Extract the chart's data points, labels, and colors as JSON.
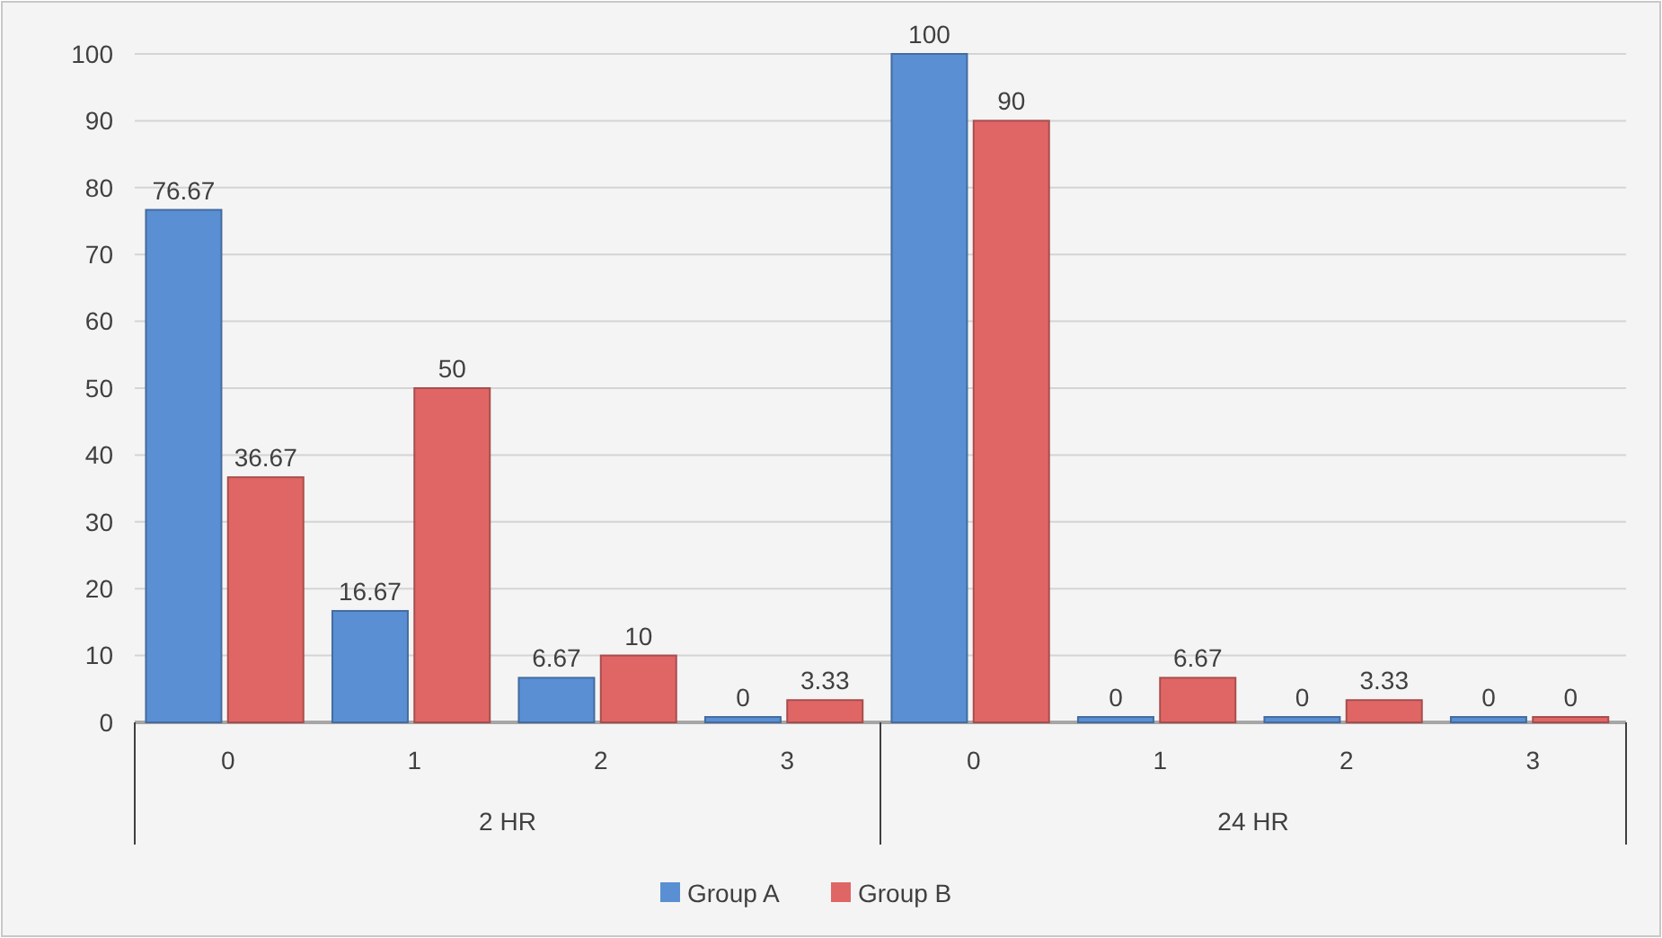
{
  "chart_data": {
    "type": "bar",
    "categories": [
      "0",
      "1",
      "2",
      "3",
      "0",
      "1",
      "2",
      "3"
    ],
    "series": [
      {
        "name": "Group A",
        "color": "#5b8fd4",
        "values": [
          76.67,
          16.67,
          6.67,
          0,
          100,
          0,
          0,
          0
        ]
      },
      {
        "name": "Group B",
        "color": "#e06666",
        "values": [
          36.67,
          50,
          10,
          3.33,
          90,
          6.67,
          3.33,
          0
        ]
      }
    ],
    "annotations": [
      "2 HR",
      "24 HR"
    ],
    "ylim": [
      0,
      100
    ],
    "yticks": [
      0,
      10,
      20,
      30,
      40,
      50,
      60,
      70,
      80,
      90,
      100
    ],
    "grid": "y",
    "legend": "bottom",
    "data_labels": true
  }
}
